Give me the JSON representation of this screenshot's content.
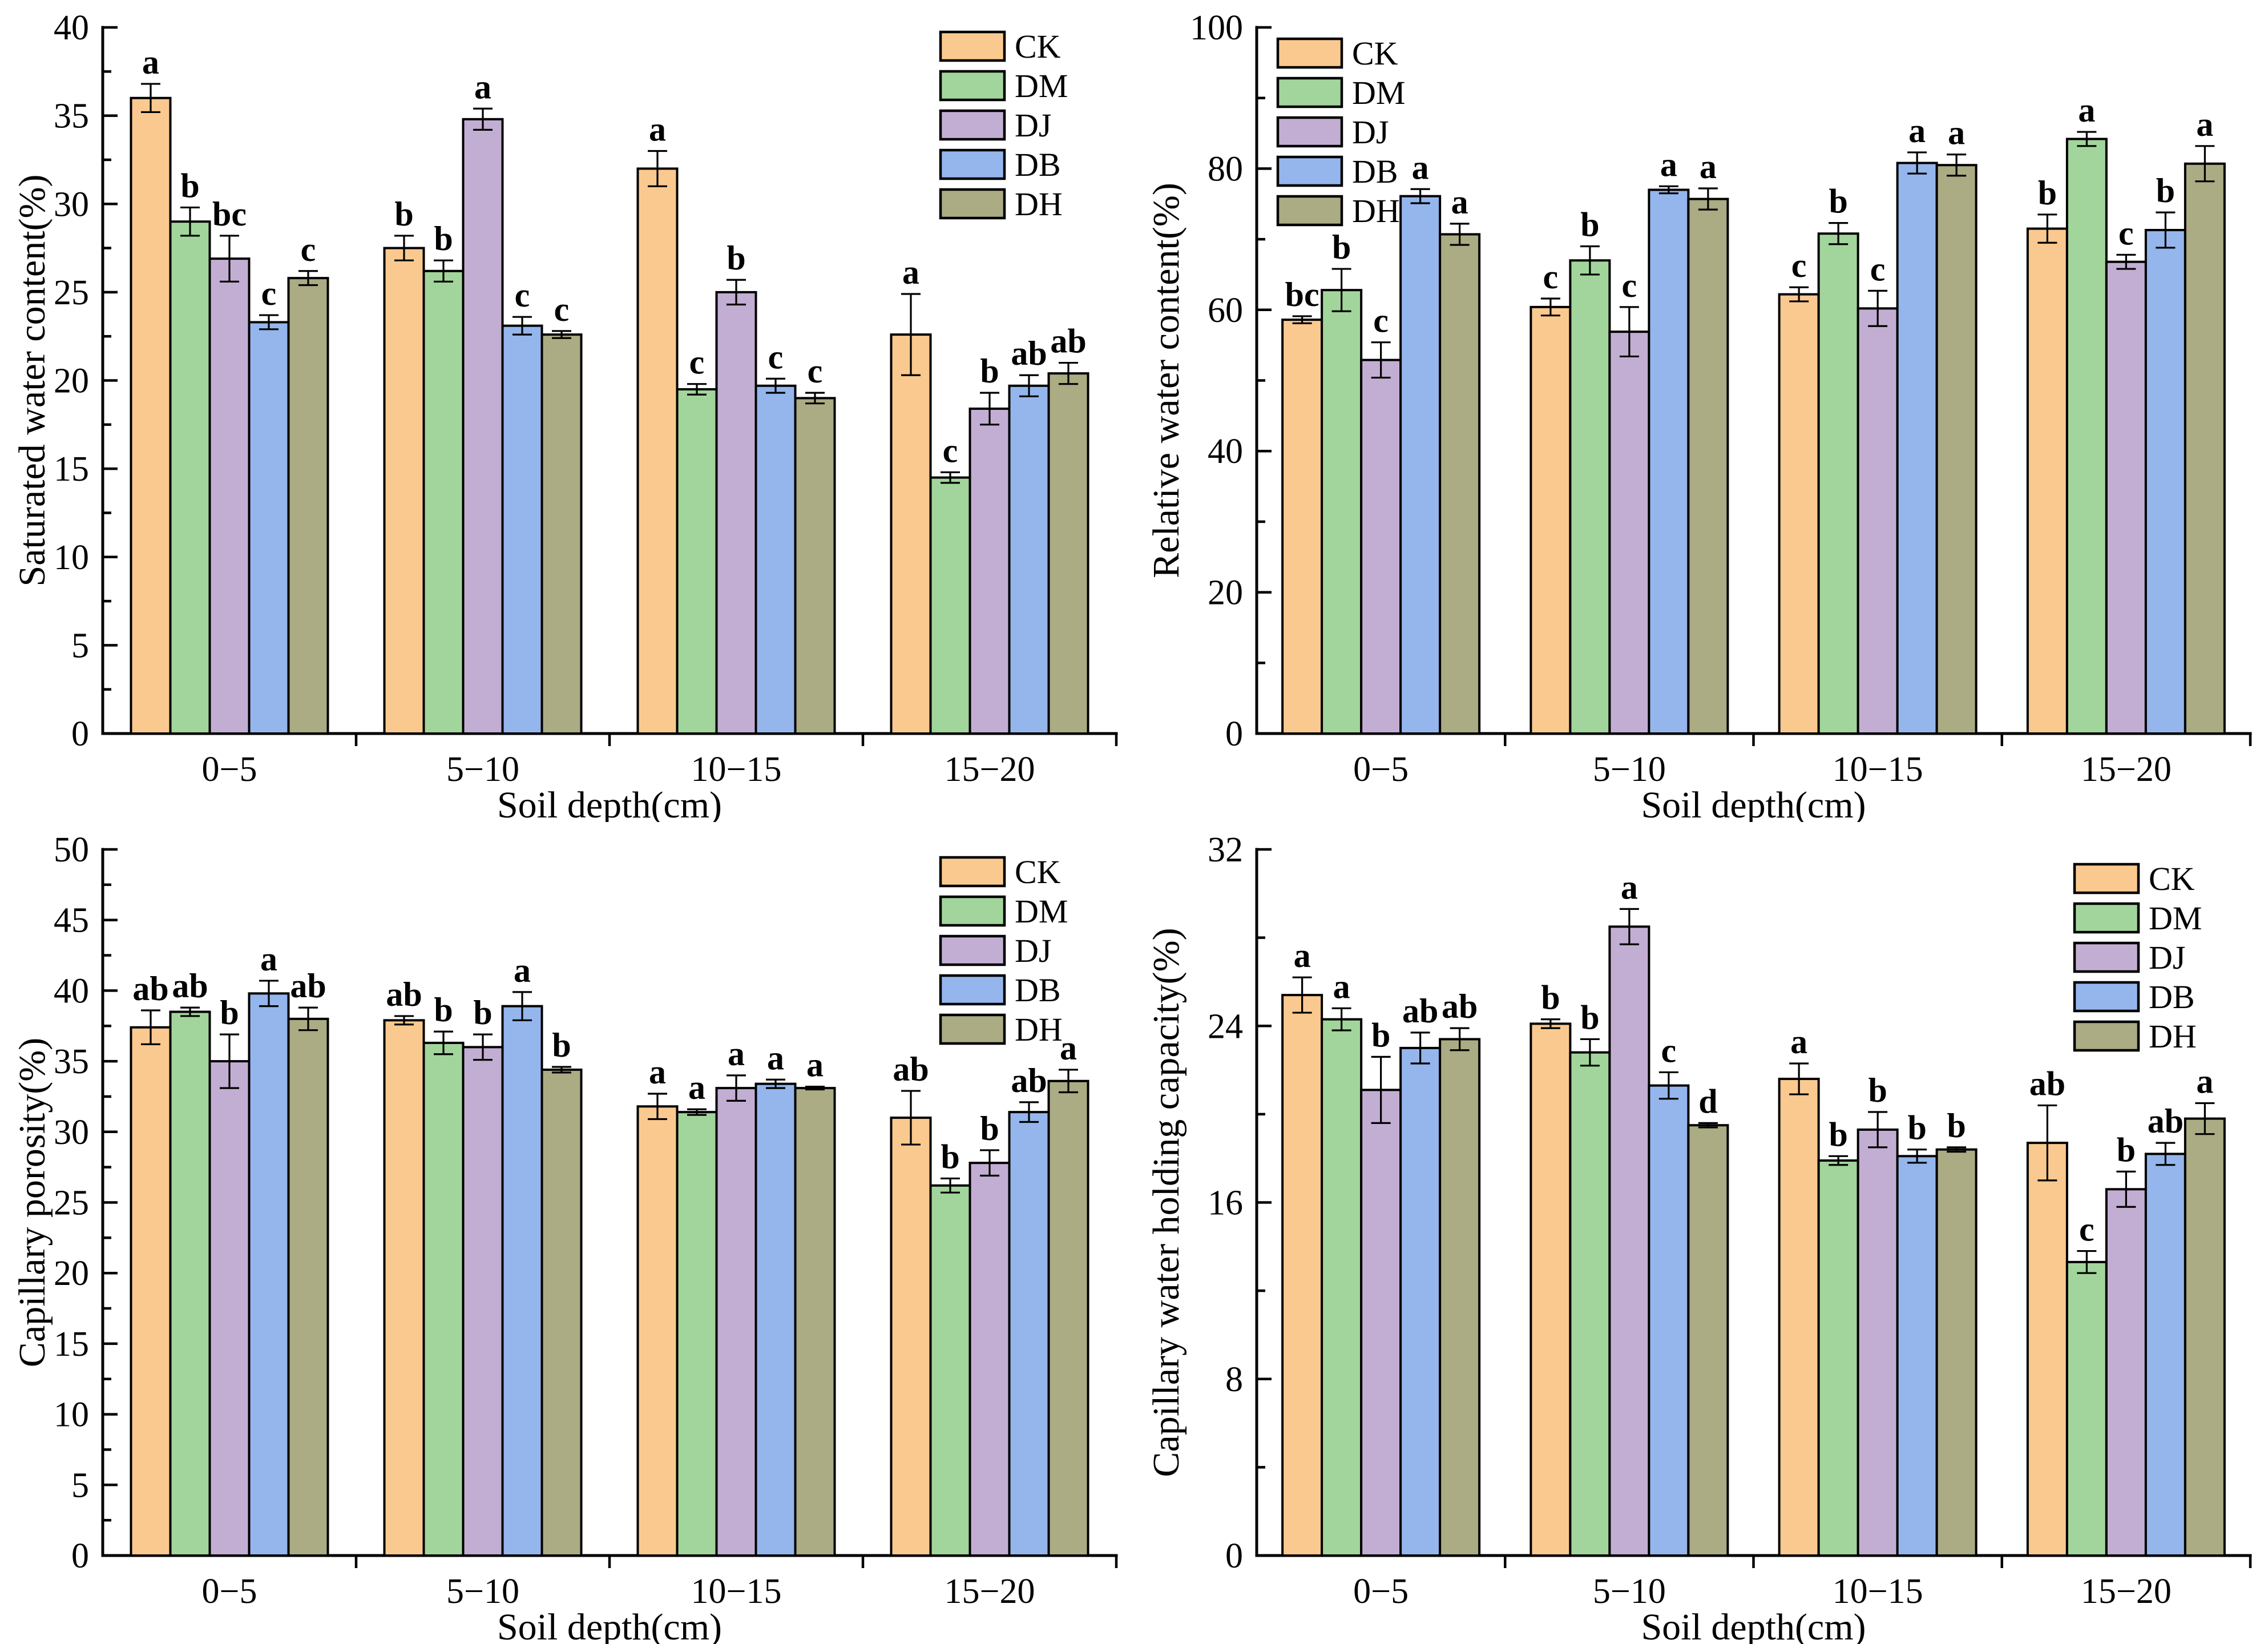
{
  "figure": {
    "background": "#ffffff",
    "treatment_colors": {
      "CK": "#FAC98F",
      "DM": "#A2D59B",
      "DJ": "#C3AED3",
      "DB": "#94B6ED",
      "DH": "#ABAB84"
    },
    "edge_color": "#000000"
  },
  "chart_data": [
    {
      "id": "saturated-water-content",
      "type": "bar",
      "title": "",
      "ylabel": "Saturated water content(%)",
      "xlabel": "Soil depth(cm)",
      "categories": [
        "0−5",
        "5−10",
        "10−15",
        "15−20"
      ],
      "ylim": [
        0,
        40
      ],
      "yticks": [
        0,
        5,
        10,
        15,
        20,
        25,
        30,
        35,
        40
      ],
      "yminor_step": 2.5,
      "grid": false,
      "legend_position": "top-right",
      "series": [
        {
          "name": "CK",
          "color": "#FAC98F",
          "values": [
            36.0,
            27.5,
            32.0,
            22.6
          ],
          "errors": [
            0.8,
            0.7,
            1.0,
            2.3
          ],
          "sig_letters": [
            "a",
            "b",
            "a",
            "a"
          ]
        },
        {
          "name": "DM",
          "color": "#A2D59B",
          "values": [
            29.0,
            26.2,
            19.5,
            14.5
          ],
          "errors": [
            0.8,
            0.6,
            0.3,
            0.3
          ],
          "sig_letters": [
            "b",
            "b",
            "c",
            "c"
          ]
        },
        {
          "name": "DJ",
          "color": "#C3AED3",
          "values": [
            26.9,
            34.8,
            25.0,
            18.4
          ],
          "errors": [
            1.3,
            0.6,
            0.7,
            0.9
          ],
          "sig_letters": [
            "bc",
            "a",
            "b",
            "b"
          ]
        },
        {
          "name": "DB",
          "color": "#94B6ED",
          "values": [
            23.3,
            23.1,
            19.7,
            19.7
          ],
          "errors": [
            0.4,
            0.5,
            0.4,
            0.6
          ],
          "sig_letters": [
            "c",
            "c",
            "c",
            "ab"
          ]
        },
        {
          "name": "DH",
          "color": "#ABAB84",
          "values": [
            25.8,
            22.6,
            19.0,
            20.4
          ],
          "errors": [
            0.4,
            0.2,
            0.3,
            0.6
          ],
          "sig_letters": [
            "c",
            "c",
            "c",
            "ab"
          ]
        }
      ]
    },
    {
      "id": "relative-water-content",
      "type": "bar",
      "title": "",
      "ylabel": "Relative water content(%)",
      "xlabel": "Soil depth(cm)",
      "categories": [
        "0−5",
        "5−10",
        "10−15",
        "15−20"
      ],
      "ylim": [
        0,
        100
      ],
      "yticks": [
        0,
        20,
        40,
        60,
        80,
        100
      ],
      "yminor_step": 10,
      "grid": false,
      "legend_position": "top-left",
      "series": [
        {
          "name": "CK",
          "color": "#FAC98F",
          "values": [
            58.6,
            60.4,
            62.2,
            71.5
          ],
          "errors": [
            0.5,
            1.2,
            1.0,
            2.0
          ],
          "sig_letters": [
            "bc",
            "c",
            "c",
            "b"
          ]
        },
        {
          "name": "DM",
          "color": "#A2D59B",
          "values": [
            62.8,
            67.0,
            70.8,
            84.2
          ],
          "errors": [
            3.0,
            2.0,
            1.5,
            1.0
          ],
          "sig_letters": [
            "b",
            "b",
            "b",
            "a"
          ]
        },
        {
          "name": "DJ",
          "color": "#C3AED3",
          "values": [
            52.9,
            56.9,
            60.2,
            66.8
          ],
          "errors": [
            2.5,
            3.5,
            2.5,
            1.0
          ],
          "sig_letters": [
            "c",
            "c",
            "c",
            "c"
          ]
        },
        {
          "name": "DB",
          "color": "#94B6ED",
          "values": [
            76.1,
            77.0,
            80.8,
            71.3
          ],
          "errors": [
            1.0,
            0.5,
            1.5,
            2.5
          ],
          "sig_letters": [
            "a",
            "a",
            "a",
            "b"
          ]
        },
        {
          "name": "DH",
          "color": "#ABAB84",
          "values": [
            70.7,
            75.7,
            80.5,
            80.7
          ],
          "errors": [
            1.5,
            1.5,
            1.5,
            2.5
          ],
          "sig_letters": [
            "a",
            "a",
            "a",
            "a"
          ]
        }
      ]
    },
    {
      "id": "capillary-porosity",
      "type": "bar",
      "title": "",
      "ylabel": "Capillary porosity(%)",
      "xlabel": "Soil depth(cm)",
      "categories": [
        "0−5",
        "5−10",
        "10−15",
        "15−20"
      ],
      "ylim": [
        0,
        50
      ],
      "yticks": [
        0,
        5,
        10,
        15,
        20,
        25,
        30,
        35,
        40,
        45,
        50
      ],
      "yminor_step": 2.5,
      "grid": false,
      "legend_position": "top-right",
      "series": [
        {
          "name": "CK",
          "color": "#FAC98F",
          "values": [
            37.4,
            37.9,
            31.8,
            31.0
          ],
          "errors": [
            1.2,
            0.3,
            0.9,
            1.9
          ],
          "sig_letters": [
            "ab",
            "ab",
            "a",
            "ab"
          ]
        },
        {
          "name": "DM",
          "color": "#A2D59B",
          "values": [
            38.5,
            36.3,
            31.4,
            26.2
          ],
          "errors": [
            0.3,
            0.8,
            0.2,
            0.5
          ],
          "sig_letters": [
            "ab",
            "b",
            "a",
            "b"
          ]
        },
        {
          "name": "DJ",
          "color": "#C3AED3",
          "values": [
            35.0,
            36.0,
            33.1,
            27.8
          ],
          "errors": [
            1.9,
            0.9,
            0.9,
            0.9
          ],
          "sig_letters": [
            "b",
            "b",
            "a",
            "b"
          ]
        },
        {
          "name": "DB",
          "color": "#94B6ED",
          "values": [
            39.8,
            38.9,
            33.4,
            31.4
          ],
          "errors": [
            0.9,
            1.0,
            0.3,
            0.7
          ],
          "sig_letters": [
            "a",
            "a",
            "a",
            "ab"
          ]
        },
        {
          "name": "DH",
          "color": "#ABAB84",
          "values": [
            38.0,
            34.4,
            33.1,
            33.6
          ],
          "errors": [
            0.8,
            0.2,
            0.1,
            0.8
          ],
          "sig_letters": [
            "ab",
            "b",
            "a",
            "a"
          ]
        }
      ]
    },
    {
      "id": "capillary-water-holding-capacity",
      "type": "bar",
      "title": "",
      "ylabel": "Capillary water holding capacity(%)",
      "xlabel": "Soil depth(cm)",
      "categories": [
        "0−5",
        "5−10",
        "10−15",
        "15−20"
      ],
      "ylim": [
        0,
        32
      ],
      "yticks": [
        0,
        8,
        16,
        24,
        32
      ],
      "yminor_step": 4,
      "grid": false,
      "legend_position": "top-right",
      "series": [
        {
          "name": "CK",
          "color": "#FAC98F",
          "values": [
            25.4,
            24.1,
            21.6,
            18.7
          ],
          "errors": [
            0.8,
            0.2,
            0.7,
            1.7
          ],
          "sig_letters": [
            "a",
            "b",
            "a",
            "ab"
          ]
        },
        {
          "name": "DM",
          "color": "#A2D59B",
          "values": [
            24.3,
            22.8,
            17.9,
            13.3
          ],
          "errors": [
            0.5,
            0.6,
            0.2,
            0.5
          ],
          "sig_letters": [
            "a",
            "b",
            "b",
            "c"
          ]
        },
        {
          "name": "DJ",
          "color": "#C3AED3",
          "values": [
            21.1,
            28.5,
            19.3,
            16.6
          ],
          "errors": [
            1.5,
            0.8,
            0.8,
            0.8
          ],
          "sig_letters": [
            "b",
            "a",
            "b",
            "b"
          ]
        },
        {
          "name": "DB",
          "color": "#94B6ED",
          "values": [
            23.0,
            21.3,
            18.1,
            18.2
          ],
          "errors": [
            0.7,
            0.6,
            0.3,
            0.5
          ],
          "sig_letters": [
            "ab",
            "c",
            "b",
            "ab"
          ]
        },
        {
          "name": "DH",
          "color": "#ABAB84",
          "values": [
            23.4,
            19.5,
            18.4,
            19.8
          ],
          "errors": [
            0.5,
            0.1,
            0.1,
            0.7
          ],
          "sig_letters": [
            "ab",
            "d",
            "b",
            "a"
          ]
        }
      ]
    }
  ]
}
